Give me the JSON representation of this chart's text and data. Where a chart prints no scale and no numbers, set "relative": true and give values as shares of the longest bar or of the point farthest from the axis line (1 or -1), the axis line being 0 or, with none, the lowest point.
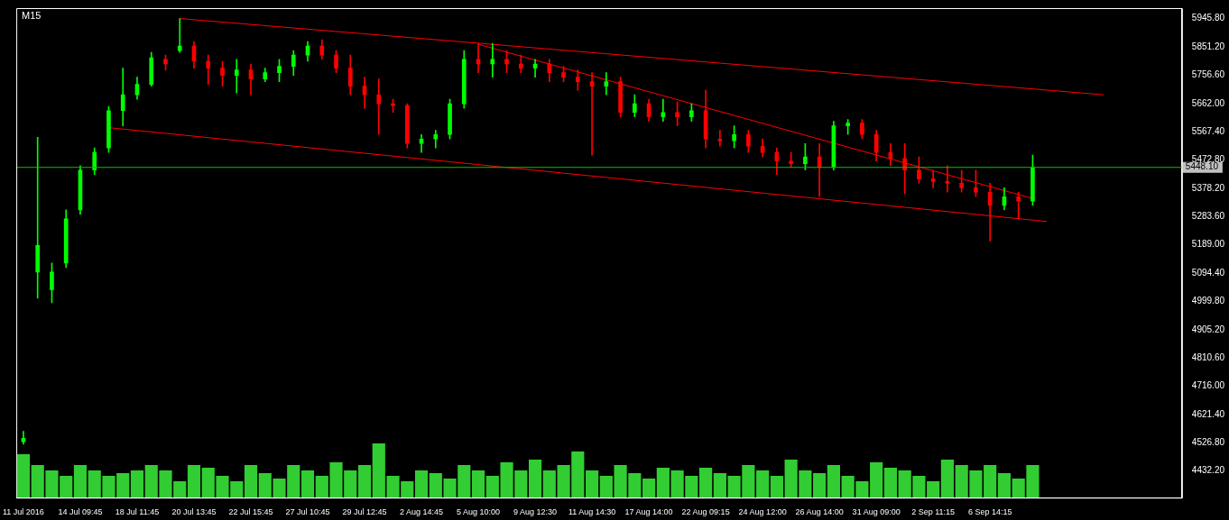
{
  "chart_data": [
    {
      "type": "candlestick",
      "title": "M15",
      "categories": [
        "11 Jul 2016",
        null,
        null,
        null,
        "14 Jul 09:45",
        null,
        null,
        null,
        "18 Jul 11:45",
        null,
        null,
        null,
        "20 Jul 13:45",
        null,
        null,
        null,
        "22 Jul 15:45",
        null,
        null,
        null,
        "27 Jul 10:45",
        null,
        null,
        null,
        "29 Jul 12:45",
        null,
        null,
        null,
        "2 Aug 14:45",
        null,
        null,
        null,
        "5 Aug 10:00",
        null,
        null,
        null,
        "9 Aug 12:30",
        null,
        null,
        null,
        "11 Aug 14:30",
        null,
        null,
        null,
        "17 Aug 14:00",
        null,
        null,
        null,
        "22 Aug 09:15",
        null,
        null,
        null,
        "24 Aug 12:00",
        null,
        null,
        null,
        "26 Aug 14:00",
        null,
        null,
        null,
        "31 Aug 09:00",
        null,
        null,
        null,
        "2 Sep 11:15",
        null,
        null,
        null,
        "6 Sep 14:15",
        null,
        null,
        null,
        null,
        null,
        null,
        null,
        null,
        null,
        null,
        null,
        null,
        null
      ],
      "ohlc": [
        [
          4530,
          4565,
          4522,
          4542
        ],
        [
          5098,
          5549,
          5010,
          5187
        ],
        [
          5039,
          5128,
          4995,
          5098
        ],
        [
          5128,
          5306,
          5113,
          5276
        ],
        [
          5306,
          5454,
          5291,
          5439
        ],
        [
          5439,
          5513,
          5424,
          5498
        ],
        [
          5513,
          5652,
          5498,
          5638
        ],
        [
          5638,
          5780,
          5587,
          5691
        ],
        [
          5691,
          5750,
          5676,
          5726
        ],
        [
          5726,
          5833,
          5720,
          5815
        ],
        [
          5810,
          5824,
          5774,
          5794
        ],
        [
          5839,
          5946,
          5833,
          5854
        ],
        [
          5854,
          5869,
          5780,
          5803
        ],
        [
          5803,
          5824,
          5726,
          5780
        ],
        [
          5780,
          5803,
          5720,
          5756
        ],
        [
          5756,
          5810,
          5697,
          5774
        ],
        [
          5774,
          5794,
          5691,
          5744
        ],
        [
          5744,
          5780,
          5735,
          5765
        ],
        [
          5765,
          5810,
          5735,
          5786
        ],
        [
          5786,
          5839,
          5756,
          5824
        ],
        [
          5824,
          5869,
          5803,
          5854
        ],
        [
          5854,
          5875,
          5810,
          5824
        ],
        [
          5824,
          5839,
          5765,
          5780
        ],
        [
          5780,
          5824,
          5691,
          5720
        ],
        [
          5720,
          5750,
          5646,
          5691
        ],
        [
          5691,
          5744,
          5558,
          5661
        ],
        [
          5661,
          5676,
          5632,
          5655
        ],
        [
          5655,
          5661,
          5513,
          5528
        ],
        [
          5528,
          5558,
          5498,
          5543
        ],
        [
          5543,
          5572,
          5513,
          5558
        ],
        [
          5558,
          5676,
          5543,
          5661
        ],
        [
          5661,
          5839,
          5646,
          5810
        ],
        [
          5810,
          5863,
          5765,
          5794
        ],
        [
          5794,
          5863,
          5750,
          5810
        ],
        [
          5810,
          5839,
          5765,
          5794
        ],
        [
          5794,
          5824,
          5765,
          5780
        ],
        [
          5780,
          5810,
          5750,
          5794
        ],
        [
          5794,
          5810,
          5735,
          5765
        ],
        [
          5765,
          5786,
          5735,
          5750
        ],
        [
          5750,
          5774,
          5706,
          5735
        ],
        [
          5735,
          5765,
          5489,
          5720
        ],
        [
          5720,
          5765,
          5691,
          5735
        ],
        [
          5735,
          5750,
          5617,
          5632
        ],
        [
          5632,
          5691,
          5617,
          5661
        ],
        [
          5661,
          5676,
          5602,
          5617
        ],
        [
          5617,
          5676,
          5602,
          5632
        ],
        [
          5632,
          5667,
          5587,
          5617
        ],
        [
          5617,
          5661,
          5602,
          5638
        ],
        [
          5638,
          5706,
          5513,
          5543
        ],
        [
          5543,
          5572,
          5519,
          5537
        ],
        [
          5537,
          5587,
          5513,
          5558
        ],
        [
          5558,
          5572,
          5498,
          5519
        ],
        [
          5519,
          5543,
          5483,
          5498
        ],
        [
          5498,
          5513,
          5424,
          5469
        ],
        [
          5469,
          5498,
          5448,
          5460
        ],
        [
          5460,
          5528,
          5439,
          5483
        ],
        [
          5483,
          5528,
          5350,
          5448
        ],
        [
          5448,
          5602,
          5439,
          5587
        ],
        [
          5587,
          5608,
          5558,
          5596
        ],
        [
          5596,
          5608,
          5543,
          5558
        ],
        [
          5558,
          5572,
          5469,
          5498
        ],
        [
          5498,
          5528,
          5454,
          5478
        ],
        [
          5478,
          5528,
          5359,
          5439
        ],
        [
          5439,
          5483,
          5395,
          5409
        ],
        [
          5409,
          5439,
          5380,
          5401
        ],
        [
          5401,
          5454,
          5365,
          5395
        ],
        [
          5395,
          5439,
          5365,
          5380
        ],
        [
          5380,
          5439,
          5350,
          5365
        ],
        [
          5365,
          5395,
          5202,
          5321
        ],
        [
          5321,
          5380,
          5306,
          5350
        ],
        [
          5350,
          5365,
          5276,
          5335
        ],
        [
          5335,
          5489,
          5321,
          5448
        ],
        null,
        null,
        null,
        null,
        null,
        null,
        null,
        null,
        null,
        null
      ],
      "colors": [
        "#00ff00",
        "#00ff00",
        "#00ff00",
        "#00ff00",
        "#00ff00",
        "#00ff00",
        "#00ff00",
        "#00ff00",
        "#00ff00",
        "#00ff00",
        "#ff0000",
        "#00ff00",
        "#ff0000",
        "#ff0000",
        "#ff0000",
        "#00ff00",
        "#ff0000",
        "#00ff00",
        "#00ff00",
        "#00ff00",
        "#00ff00",
        "#ff0000",
        "#ff0000",
        "#ff0000",
        "#ff0000",
        "#ff0000",
        "#ff0000",
        "#ff0000",
        "#00ff00",
        "#00ff00",
        "#00ff00",
        "#00ff00",
        "#ff0000",
        "#00ff00",
        "#ff0000",
        "#ff0000",
        "#00ff00",
        "#ff0000",
        "#ff0000",
        "#ff0000",
        "#ff0000",
        "#00ff00",
        "#ff0000",
        "#00ff00",
        "#ff0000",
        "#00ff00",
        "#ff0000",
        "#00ff00",
        "#ff0000",
        "#ff0000",
        "#00ff00",
        "#ff0000",
        "#ff0000",
        "#ff0000",
        "#ff0000",
        "#00ff00",
        "#ff0000",
        "#00ff00",
        "#00ff00",
        "#ff0000",
        "#ff0000",
        "#ff0000",
        "#ff0000",
        "#ff0000",
        "#ff0000",
        "#ff0000",
        "#ff0000",
        "#ff0000",
        "#ff0000",
        "#00ff00",
        "#ff0000",
        "#00ff00",
        null,
        null,
        null,
        null,
        null,
        null,
        null,
        null,
        null,
        null
      ],
      "series": [
        {
          "type": "line",
          "color": "#ff0000",
          "values": [
            null,
            null,
            null,
            null,
            null,
            null,
            null,
            null,
            null,
            null,
            null,
            5946,
            null,
            null,
            null,
            null,
            null,
            null,
            null,
            null,
            null,
            null,
            null,
            null,
            null,
            null,
            null,
            null,
            null,
            null,
            null,
            null,
            null,
            null,
            null,
            null,
            null,
            null,
            null,
            null,
            null,
            null,
            null,
            null,
            null,
            null,
            null,
            null,
            null,
            null,
            null,
            null,
            null,
            null,
            null,
            null,
            null,
            null,
            null,
            null,
            null,
            null,
            null,
            null,
            null,
            null,
            null,
            null,
            null,
            null,
            null,
            null,
            null,
            null,
            null,
            null,
            5691,
            null,
            null,
            null,
            null,
            null
          ]
        },
        {
          "type": "line",
          "color": "#ff0000",
          "values": [
            null,
            null,
            null,
            null,
            null,
            null,
            5581,
            null,
            null,
            null,
            null,
            null,
            null,
            null,
            null,
            null,
            null,
            null,
            null,
            null,
            null,
            null,
            null,
            null,
            null,
            null,
            null,
            null,
            null,
            null,
            null,
            null,
            null,
            null,
            null,
            null,
            null,
            null,
            null,
            null,
            null,
            null,
            null,
            null,
            null,
            null,
            null,
            null,
            null,
            null,
            null,
            null,
            null,
            null,
            null,
            null,
            null,
            null,
            null,
            null,
            null,
            null,
            null,
            null,
            null,
            null,
            null,
            null,
            null,
            null,
            null,
            null,
            5267,
            null,
            null,
            null,
            null,
            null,
            null,
            null,
            null,
            null
          ]
        },
        {
          "type": "line",
          "color": "#ff0000",
          "values": [
            null,
            null,
            null,
            null,
            null,
            null,
            null,
            null,
            null,
            null,
            null,
            null,
            null,
            null,
            null,
            null,
            null,
            null,
            null,
            null,
            null,
            null,
            null,
            null,
            null,
            null,
            null,
            null,
            null,
            null,
            null,
            null,
            5860,
            null,
            null,
            null,
            null,
            null,
            null,
            null,
            null,
            null,
            null,
            null,
            null,
            null,
            null,
            null,
            null,
            null,
            null,
            null,
            null,
            null,
            null,
            null,
            null,
            null,
            null,
            null,
            null,
            null,
            null,
            null,
            null,
            null,
            null,
            null,
            null,
            null,
            null,
            5344,
            null,
            null,
            null,
            null,
            null,
            null,
            null,
            null,
            null,
            null
          ]
        }
      ],
      "ylim": [
        4343,
        5981
      ],
      "yticks": [
        {
          "value": 5945.8,
          "label": "5945.80"
        },
        {
          "value": 5851.2,
          "label": "5851.20"
        },
        {
          "value": 5756.6,
          "label": "5756.60"
        },
        {
          "value": 5662,
          "label": "5662.00"
        },
        {
          "value": 5567.4,
          "label": "5567.40"
        },
        {
          "value": 5472.8,
          "label": "5472.80"
        },
        {
          "value": 5378.2,
          "label": "5378.20"
        },
        {
          "value": 5283.6,
          "label": "5283.60"
        },
        {
          "value": 5189,
          "label": "5189.00"
        },
        {
          "value": 5094.4,
          "label": "5094.40"
        },
        {
          "value": 4999.8,
          "label": "4999.80"
        },
        {
          "value": 4905.2,
          "label": "4905.20"
        },
        {
          "value": 4810.6,
          "label": "4810.60"
        },
        {
          "value": 4716,
          "label": "4716.00"
        },
        {
          "value": 4621.4,
          "label": "4621.40"
        },
        {
          "value": 4526.8,
          "label": "4526.80"
        },
        {
          "value": 4432.2,
          "label": "4432.20"
        }
      ],
      "ref_lines": [
        {
          "axis": "y",
          "value": 5448.1,
          "label": "5448.10",
          "color": "#00c000"
        }
      ],
      "grid": false,
      "legend": false
    },
    {
      "type": "bar",
      "relative": true,
      "color": "#32cd32",
      "tick_labels": false,
      "grid": false,
      "legend": false,
      "categories": [
        null,
        null,
        null,
        null,
        null,
        null,
        null,
        null,
        null,
        null,
        null,
        null,
        null,
        null,
        null,
        null,
        null,
        null,
        null,
        null,
        null,
        null,
        null,
        null,
        null,
        null,
        null,
        null,
        null,
        null,
        null,
        null,
        null,
        null,
        null,
        null,
        null,
        null,
        null,
        null,
        null,
        null,
        null,
        null,
        null,
        null,
        null,
        null,
        null,
        null,
        null,
        null,
        null,
        null,
        null,
        null,
        null,
        null,
        null,
        null,
        null,
        null,
        null,
        null,
        null,
        null,
        null,
        null,
        null,
        null,
        null,
        null,
        null,
        null,
        null,
        null,
        null,
        null,
        null,
        null,
        null,
        null
      ],
      "values": [
        0.8,
        0.6,
        0.5,
        0.4,
        0.6,
        0.5,
        0.4,
        0.45,
        0.5,
        0.6,
        0.5,
        0.3,
        0.6,
        0.55,
        0.4,
        0.3,
        0.6,
        0.45,
        0.35,
        0.6,
        0.5,
        0.4,
        0.65,
        0.5,
        0.6,
        1,
        0.4,
        0.3,
        0.5,
        0.45,
        0.35,
        0.6,
        0.5,
        0.4,
        0.65,
        0.5,
        0.7,
        0.5,
        0.6,
        0.85,
        0.5,
        0.4,
        0.6,
        0.45,
        0.35,
        0.55,
        0.5,
        0.4,
        0.55,
        0.45,
        0.4,
        0.6,
        0.5,
        0.4,
        0.7,
        0.5,
        0.45,
        0.6,
        0.4,
        0.3,
        0.65,
        0.55,
        0.5,
        0.4,
        0.3,
        0.7,
        0.6,
        0.5,
        0.6,
        0.45,
        0.35,
        0.6,
        null,
        null,
        null,
        null,
        null,
        null,
        null,
        null,
        null,
        null
      ]
    }
  ]
}
